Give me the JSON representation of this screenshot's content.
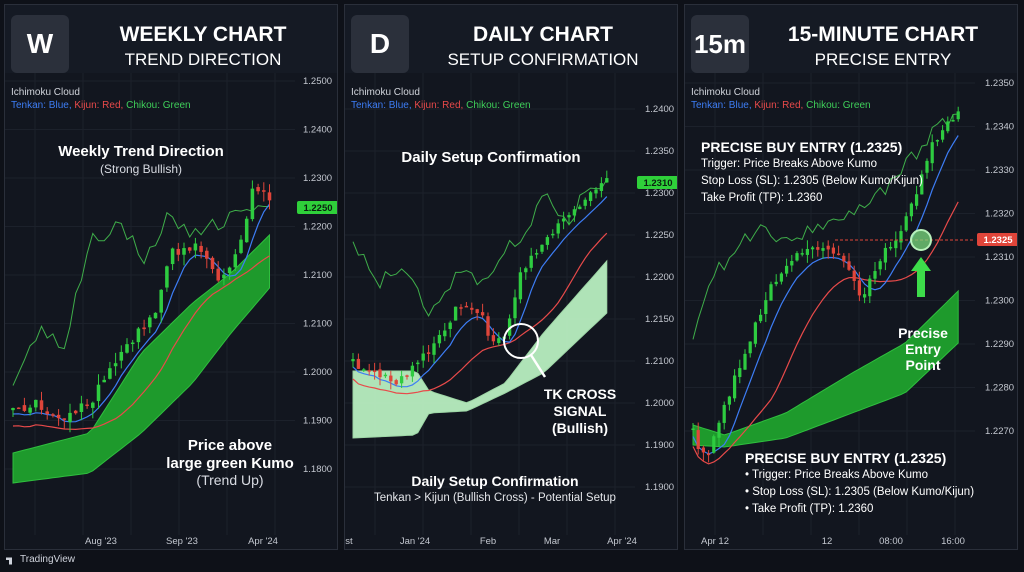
{
  "footer": {
    "brand": "TradingView"
  },
  "legend": {
    "name": "Ichimoku Cloud",
    "tenkan": "Tenkan: Blue,",
    "kijun": "Kijun: Red,",
    "chikou": "Chikou: Green"
  },
  "colors": {
    "bull": "#2ecc40",
    "bear": "#e0453a",
    "tenkan": "#3d7df5",
    "kijun": "#e84a4a",
    "chikou": "#3fae4a",
    "kumo_dark": "#1e9a2c",
    "kumo_light": "#b8eec0",
    "price_tag": "#2fd03a",
    "entry_tag": "#e0453a"
  },
  "chart_data": [
    {
      "type": "candlestick",
      "badge": "W",
      "title": "WEEKLY CHART",
      "subtitle": "TREND DIRECTION",
      "yticks": [
        "1.2500",
        "1.2400",
        "1.2300",
        "1.2200",
        "1.2100",
        "1.2100",
        "1.2000",
        "1.1900",
        "1.1800"
      ],
      "current_price": "1.2250",
      "xticks": [
        "Aug '23",
        "Sep '23",
        "Apr '24"
      ],
      "annotations": {
        "heading": "Weekly Trend Direction",
        "heading_sub": "(Strong Bullish)",
        "note1": "Price above",
        "note2": "large green Kumo",
        "note3": "(Trend Up)"
      }
    },
    {
      "type": "candlestick",
      "badge": "D",
      "title": "DAILY CHART",
      "subtitle": "SETUP CONFIRMATION",
      "yticks": [
        "1.2400",
        "1.2350",
        "1.2300",
        "1.2250",
        "1.2200",
        "1.2150",
        "1.2100",
        "1.2000",
        "1.1900",
        "1.1900"
      ],
      "current_price": "1.2310",
      "xticks": [
        "st",
        "Jan '24",
        "Feb",
        "Mar",
        "Apr '24"
      ],
      "annotations": {
        "heading": "Daily Setup Confirmation",
        "cross1": "TK CROSS",
        "cross2": "SIGNAL",
        "cross3": "(Bullish)",
        "bottom1": "Daily Setup Confirmation",
        "bottom2": "Tenkan > Kijun (Bullish Cross) - Potential Setup"
      }
    },
    {
      "type": "candlestick",
      "badge": "15m",
      "title": "15-MINUTE CHART",
      "subtitle": "PRECISE ENTRY",
      "yticks": [
        "1.2350",
        "1.2340",
        "1.2330",
        "1.2320",
        "1.2310",
        "1.2300",
        "1.2290",
        "1.2280",
        "1.2270"
      ],
      "entry_price": "1.2325",
      "xticks": [
        "Apr 12",
        "12",
        "08:00",
        "16:00"
      ],
      "annotations": {
        "top_title": "PRECISE BUY ENTRY (1.2325)",
        "top_trigger": "Trigger: Price Breaks Above Kumo",
        "top_sl": "Stop Loss (SL): 1.2305 (Below Kumo/Kijun)",
        "top_tp": "Take Profit (TP): 1.2360",
        "entry1": "Precise",
        "entry2": "Entry",
        "entry3": "Point",
        "bottom_title": "PRECISE BUY ENTRY (1.2325)",
        "bottom_trigger": "• Trigger: Price Breaks Above Kumo",
        "bottom_sl": "• Stop Loss (SL): 1.2305 (Below Kumo/Kijun)",
        "bottom_tp": "• Take Profit (TP): 1.2360"
      }
    }
  ]
}
